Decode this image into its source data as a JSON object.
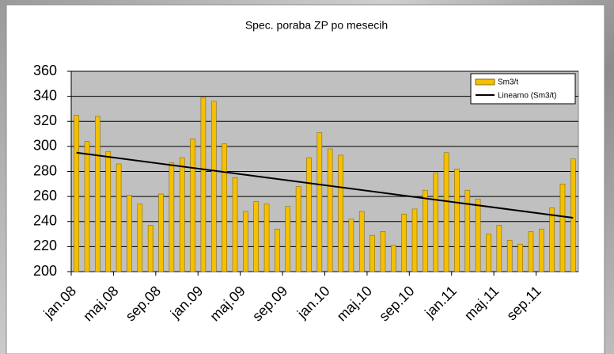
{
  "chart_data": {
    "type": "bar",
    "title": "Spec. poraba ZP po mesecih",
    "categories": [
      "jan.08",
      null,
      null,
      null,
      "maj.08",
      null,
      null,
      null,
      "sep.08",
      null,
      null,
      null,
      "jan.09",
      null,
      null,
      null,
      "maj.09",
      null,
      null,
      null,
      "sep.09",
      null,
      null,
      null,
      "jan.10",
      null,
      null,
      null,
      "maj.10",
      null,
      null,
      null,
      "sep.10",
      null,
      null,
      null,
      "jan.11",
      null,
      null,
      null,
      "maj.11",
      null,
      null,
      null,
      "sep.11",
      null,
      null,
      null
    ],
    "series": [
      {
        "name": "Sm3/t",
        "color": "#f5c000",
        "values": [
          325,
          304,
          324,
          296,
          286,
          261,
          254,
          237,
          262,
          287,
          291,
          306,
          339,
          336,
          302,
          275,
          248,
          256,
          254,
          234,
          252,
          268,
          291,
          311,
          298,
          293,
          242,
          248,
          229,
          232,
          221,
          246,
          250,
          265,
          279,
          295,
          282,
          265,
          258,
          230,
          237,
          225,
          222,
          232,
          234,
          251,
          270,
          290
        ]
      }
    ],
    "trendline": {
      "name": "Linearno (Sm3/t)",
      "color": "#000000",
      "values": [
        295,
        243
      ]
    },
    "ylim": [
      200,
      360
    ],
    "yticks": [
      200,
      220,
      240,
      260,
      280,
      300,
      320,
      340,
      360
    ],
    "grid": true,
    "legend": "top-right"
  }
}
